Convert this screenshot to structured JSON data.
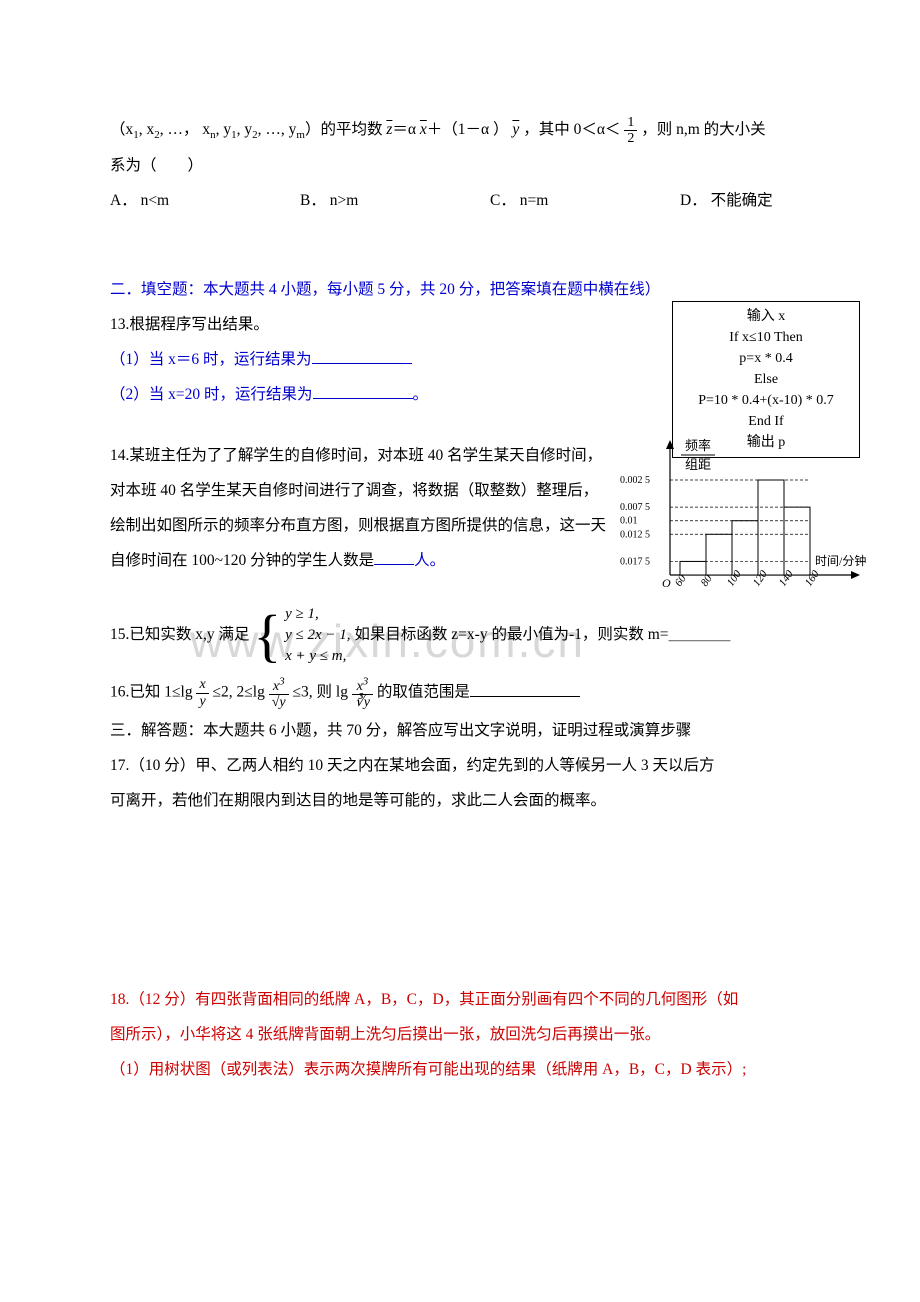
{
  "q12": {
    "prefix": "（x",
    "seq": ", x",
    "seq2": ", …， x",
    "seqy": ", y",
    "seqy2": ", y",
    "seqy3": ", …, y",
    "mid": "）的平均数",
    "eq1": "＝α",
    "eq2": "＋（1－α ）",
    "tail": " ，其中 0＜α＜",
    "half_num": "1",
    "half_den": "2",
    "end": " ，则 n,m 的大小关",
    "line2": "系为（　　）",
    "optA": "A． n<m",
    "optB": "B． n>m",
    "optC": "C． n=m",
    "optD": "D． 不能确定",
    "zbar": "z",
    "xbar": "x",
    "ybar": "y",
    "s1": "1",
    "s2": "2",
    "sn": "n",
    "sm": "m"
  },
  "sec2": "二．填空题：本大题共 4 小题，每小题 5 分，共 20 分，把答案填在题中横在线）",
  "q13": {
    "title": "13.根据程序写出结果。",
    "l1a": "（1）当 x＝6 时，运行结果为",
    "l2a": "（2）当 x=20 时，运行结果为",
    "l2b": "。"
  },
  "codebox": {
    "l1": "输入 x",
    "l2": "If x≤10 Then",
    "l3": "p=x * 0.4",
    "l4": "Else",
    "l5": "P=10 * 0.4+(x-10) * 0.7",
    "l6": "End If",
    "l7": "输出 p"
  },
  "q14": {
    "l1": "14.某班主任为了了解学生的自修时间，对本班 40 名学生某天自修时间，",
    "l2": "对本班 40 名学生某天自修时间进行了调查，将数据（取整数）整理后，",
    "l3": "绘制出如图所示的频率分布直方图，则根据直方图所提供的信息，这一天",
    "l4a": "自修时间在 100~120 分钟的学生人数是",
    "l4b": "人。"
  },
  "histogram": {
    "ylabel1": "频率",
    "ylabel2": "组距",
    "xlabel": "时间/分钟",
    "yticks": [
      "0.017 5",
      "0.012 5",
      "0.01",
      "0.007 5",
      "0.002 5"
    ],
    "yvals": [
      0.0025,
      0.0075,
      0.01,
      0.0125,
      0.0175
    ],
    "bars": [
      0.0025,
      0.0075,
      0.01,
      0.0175,
      0.0125
    ],
    "xticks": [
      "60",
      "80",
      "100",
      "120",
      "140",
      "160"
    ],
    "origin": "O",
    "axis_color": "#000000",
    "bar_fill": "#ffffff",
    "bar_stroke": "#000000",
    "grid_dash": "3,2",
    "font_size": 10
  },
  "q15": {
    "pre": "15.已知实数 x,y 满足",
    "c1": "y ≥ 1,",
    "c2": "y ≤ 2x − 1,",
    "c3": "x + y ≤ m,",
    "post": "如果目标函数 z=x-y 的最小值为-1，则实数 m=＿＿＿＿"
  },
  "q16": {
    "pre": "16.已知 1≤lg",
    "f1num": "x",
    "f1den": "y",
    "mid1": "≤2, 2≤lg",
    "f2num": "x",
    "f2den": "√y",
    "mid2": "≤3, 则 lg",
    "f3num": "x",
    "f3den": "∛y",
    "post": "的取值范围是",
    "sup3": "3"
  },
  "sec3": "三．解答题：本大题共 6 小题，共 70 分，解答应写出文字说明，证明过程或演算步骤",
  "q17": {
    "l1": "17.（10 分）甲、乙两人相约 10 天之内在某地会面，约定先到的人等候另一人 3 天以后方",
    "l2": "可离开，若他们在期限内到达目的地是等可能的，求此二人会面的概率。"
  },
  "q18": {
    "l1": "18.（12 分）有四张背面相同的纸牌 A，B，C，D，其正面分别画有四个不同的几何图形（如",
    "l2": "图所示），小华将这 4 张纸牌背面朝上洗匀后摸出一张，放回洗匀后再摸出一张。",
    "l3": "（1）用树状图（或列表法）表示两次摸牌所有可能出现的结果（纸牌用 A，B，C，D 表示）;"
  },
  "watermark": "www.zixin.com.cn"
}
